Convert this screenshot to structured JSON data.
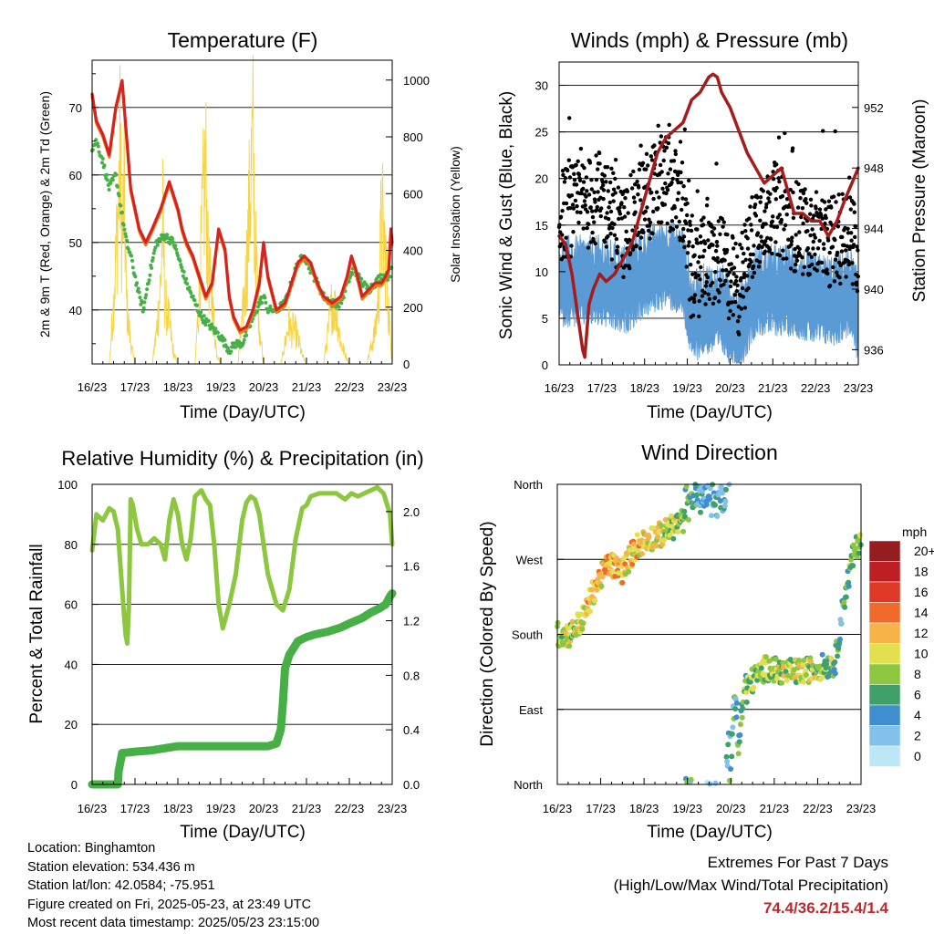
{
  "colors": {
    "temp2m": "#d42420",
    "temp9m": "#f07a18",
    "dew": "#46b046",
    "solar": "#f5d445",
    "gust": "#000000",
    "wind": "#5b9bd5",
    "pressure": "#a61c1c",
    "rh": "#8dc63f",
    "rain": "#46b046"
  },
  "x_ticks": [
    "16/23",
    "17/23",
    "18/23",
    "19/23",
    "20/23",
    "21/23",
    "22/23",
    "23/23"
  ],
  "xlabel": "Time (Day/UTC)",
  "panels": {
    "temp": {
      "title": "Temperature (F)",
      "ylabel_left": "2m & 9m T (Red, Orange) & 2m Td (Green)",
      "ylabel_right": "Solar Insolation (Yellow)",
      "left_ticks": [
        "40",
        "50",
        "60",
        "70"
      ],
      "right_ticks": [
        "0",
        "200",
        "400",
        "600",
        "800",
        "1000"
      ]
    },
    "wind": {
      "title": "Winds (mph) & Pressure (mb)",
      "ylabel_left": "Sonic Wind & Gust (Blue, Black)",
      "ylabel_right": "Station Pressure (Maroon)",
      "left_ticks": [
        "0",
        "5",
        "10",
        "15",
        "20",
        "25",
        "30"
      ],
      "right_ticks": [
        "936",
        "940",
        "944",
        "948",
        "952"
      ]
    },
    "rh": {
      "title": "Relative Humidity (%) & Precipitation (in)",
      "ylabel_left": "Percent & Total Rainfall",
      "left_ticks": [
        "0",
        "20",
        "40",
        "60",
        "80",
        "100"
      ],
      "right_ticks": [
        "0.0",
        "0.4",
        "0.8",
        "1.2",
        "1.6",
        "2.0"
      ]
    },
    "dir": {
      "title": "Wind Direction",
      "ylabel_left": "Direction (Colored By Speed)",
      "left_ticks": [
        "North",
        "East",
        "South",
        "West",
        "North"
      ],
      "legend_title": "mph",
      "legend_labels": [
        "0",
        "2",
        "4",
        "6",
        "8",
        "10",
        "12",
        "14",
        "16",
        "18",
        "20+"
      ],
      "legend_colors": [
        "#bde6f7",
        "#82c1ea",
        "#3f8fcf",
        "#3fa06a",
        "#8dc63f",
        "#e3e04f",
        "#f7b24a",
        "#ef6a2b",
        "#df3a27",
        "#bd1f25",
        "#951c1f"
      ]
    }
  },
  "info": {
    "location": "Location: Binghamton",
    "elevation": "Station elevation: 534.436 m",
    "latlon": "Station lat/lon: 42.0584; -75.951",
    "created": "Figure created on Fri, 2025-05-23, at 23:49 UTC",
    "recent": "Most recent data timestamp: 2025/05/23 23:15:00"
  },
  "extremes": {
    "line1": "Extremes For Past 7 Days",
    "line2": "(High/Low/Max Wind/Total Precipitation)",
    "values": "74.4/36.2/15.4/1.4"
  },
  "chart_data": [
    {
      "type": "line",
      "title": "Temperature (F)",
      "xlabel": "Time (Day/UTC)",
      "ylabel": "2m & 9m T (Red, Orange) & 2m Td (Green)",
      "y2label": "Solar Insolation (Yellow)",
      "xlim": [
        0,
        7
      ],
      "ylim": [
        32,
        77
      ],
      "y2lim": [
        0,
        1070
      ],
      "x_tick_labels": [
        "16/23",
        "17/23",
        "18/23",
        "19/23",
        "20/23",
        "21/23",
        "22/23",
        "23/23"
      ],
      "series": [
        {
          "name": "2m T",
          "axis": "left",
          "x": [
            0,
            0.1,
            0.25,
            0.4,
            0.55,
            0.7,
            0.8,
            0.9,
            1.0,
            1.1,
            1.25,
            1.4,
            1.6,
            1.8,
            2.0,
            2.1,
            2.2,
            2.35,
            2.5,
            2.65,
            2.8,
            2.95,
            3.1,
            3.2,
            3.3,
            3.45,
            3.6,
            3.75,
            3.9,
            4.0,
            4.1,
            4.3,
            4.5,
            4.65,
            4.8,
            4.95,
            5.1,
            5.25,
            5.4,
            5.6,
            5.8,
            5.95,
            6.05,
            6.15,
            6.3,
            6.45,
            6.6,
            6.75,
            6.85,
            6.92,
            6.97,
            7.0
          ],
          "y": [
            72,
            68,
            66,
            63,
            70,
            74,
            66,
            58,
            55,
            52,
            50,
            52,
            55,
            59,
            55,
            52,
            50,
            48,
            45,
            42,
            44,
            52,
            49,
            42,
            39,
            37,
            37.5,
            40,
            44,
            50,
            45,
            40,
            41,
            44,
            47,
            48,
            47,
            44,
            42,
            41,
            42,
            45,
            48,
            46,
            42,
            43,
            44,
            44,
            45,
            46,
            52,
            50
          ]
        },
        {
          "name": "2m Td",
          "axis": "left",
          "x": [
            0,
            0.1,
            0.25,
            0.4,
            0.55,
            0.7,
            0.8,
            0.9,
            1.0,
            1.1,
            1.2,
            1.3,
            1.5,
            1.7,
            1.9,
            2.0,
            2.2,
            2.4,
            2.55,
            2.7,
            2.85,
            3.0,
            3.2,
            3.35,
            3.5,
            3.7,
            3.9,
            4.0,
            4.1,
            4.3,
            4.5,
            4.65,
            4.8,
            4.95,
            5.1,
            5.25,
            5.4,
            5.6,
            5.8,
            5.95,
            6.1,
            6.3,
            6.45,
            6.6,
            6.75,
            6.9,
            7.0
          ],
          "y": [
            64,
            65,
            62,
            58,
            60,
            54,
            50,
            48,
            45,
            42,
            40,
            44,
            50,
            51,
            50,
            48,
            44,
            41,
            39,
            38,
            37,
            36,
            34,
            35,
            35,
            38,
            41,
            42,
            40,
            40,
            41,
            44,
            47,
            48,
            46,
            44,
            42,
            41,
            41,
            44,
            46,
            44,
            43,
            44,
            45,
            45,
            46
          ]
        },
        {
          "name": "Solar Insolation",
          "axis": "right",
          "x": [
            0,
            0.4,
            0.5,
            0.6,
            0.65,
            0.7,
            0.75,
            0.8,
            0.9,
            1.0,
            1.4,
            1.5,
            1.6,
            1.65,
            1.7,
            1.8,
            1.9,
            2.0,
            2.4,
            2.5,
            2.6,
            2.65,
            2.7,
            2.8,
            2.9,
            3.0,
            3.4,
            3.5,
            3.6,
            3.7,
            3.75,
            3.8,
            3.9,
            4.0,
            4.4,
            4.5,
            4.6,
            4.65,
            4.7,
            4.8,
            4.9,
            5.0,
            5.4,
            5.5,
            5.6,
            5.7,
            5.8,
            5.9,
            6.0,
            6.4,
            6.5,
            6.6,
            6.7,
            6.75,
            6.85,
            6.95,
            7.0
          ],
          "y": [
            0,
            0,
            300,
            700,
            1000,
            600,
            850,
            300,
            100,
            0,
            0,
            150,
            400,
            700,
            300,
            200,
            50,
            0,
            0,
            350,
            800,
            950,
            500,
            300,
            60,
            0,
            0,
            200,
            450,
            900,
            1060,
            600,
            200,
            0,
            0,
            100,
            200,
            150,
            180,
            120,
            40,
            0,
            0,
            150,
            300,
            250,
            100,
            50,
            0,
            0,
            80,
            150,
            380,
            720,
            500,
            150,
            0
          ]
        }
      ]
    },
    {
      "type": "line",
      "title": "Winds (mph) & Pressure (mb)",
      "xlabel": "Time (Day/UTC)",
      "ylabel": "Sonic Wind & Gust (Blue, Black)",
      "y2label": "Station Pressure (Maroon)",
      "xlim": [
        0,
        7
      ],
      "ylim": [
        0,
        32.5
      ],
      "y2lim": [
        935,
        955
      ],
      "x_tick_labels": [
        "16/23",
        "17/23",
        "18/23",
        "19/23",
        "20/23",
        "21/23",
        "22/23",
        "23/23"
      ],
      "series": [
        {
          "name": "Station Pressure",
          "axis": "right",
          "x": [
            0,
            0.15,
            0.3,
            0.45,
            0.55,
            0.6,
            0.7,
            0.8,
            0.95,
            1.1,
            1.3,
            1.5,
            1.7,
            1.9,
            2.1,
            2.3,
            2.5,
            2.7,
            2.9,
            3.1,
            3.3,
            3.5,
            3.6,
            3.7,
            3.8,
            4.0,
            4.2,
            4.4,
            4.6,
            4.8,
            5.0,
            5.2,
            5.4,
            5.5,
            5.7,
            5.9,
            6.1,
            6.3,
            6.5,
            6.7,
            6.85,
            7.0
          ],
          "y": [
            943.5,
            943,
            941,
            938,
            936,
            935.5,
            939,
            940,
            941,
            940.5,
            941,
            942,
            943,
            945,
            947,
            949,
            950,
            950.5,
            951,
            952.5,
            953,
            954,
            954.2,
            954,
            953,
            952,
            950.5,
            949,
            948,
            947,
            947.5,
            948,
            946,
            945,
            945,
            944.5,
            944.5,
            943.5,
            944.5,
            946,
            947,
            948
          ]
        }
      ]
    },
    {
      "type": "line",
      "title": "Relative Humidity (%) & Precipitation (in)",
      "xlabel": "Time (Day/UTC)",
      "ylabel": "Percent & Total Rainfall",
      "xlim": [
        0,
        7
      ],
      "ylim": [
        0,
        100
      ],
      "y2lim": [
        0,
        2.2
      ],
      "x_tick_labels": [
        "16/23",
        "17/23",
        "18/23",
        "19/23",
        "20/23",
        "21/23",
        "22/23",
        "23/23"
      ],
      "series": [
        {
          "name": "Relative Humidity",
          "axis": "left",
          "x": [
            0,
            0.1,
            0.25,
            0.4,
            0.5,
            0.6,
            0.7,
            0.78,
            0.82,
            0.86,
            0.9,
            0.95,
            1.05,
            1.15,
            1.3,
            1.45,
            1.6,
            1.7,
            1.8,
            1.9,
            2.0,
            2.1,
            2.2,
            2.3,
            2.4,
            2.55,
            2.65,
            2.75,
            2.85,
            2.95,
            3.05,
            3.2,
            3.35,
            3.5,
            3.6,
            3.7,
            3.8,
            3.9,
            4.0,
            4.1,
            4.3,
            4.45,
            4.6,
            4.75,
            4.9,
            5.0,
            5.1,
            5.3,
            5.5,
            5.7,
            5.9,
            6.05,
            6.2,
            6.35,
            6.5,
            6.65,
            6.8,
            6.95,
            7.0
          ],
          "y": [
            78,
            90,
            88,
            92,
            91,
            85,
            65,
            50,
            47,
            60,
            95,
            93,
            85,
            80,
            80,
            82,
            80,
            75,
            88,
            95,
            90,
            80,
            75,
            82,
            96,
            98,
            95,
            93,
            80,
            60,
            52,
            60,
            70,
            88,
            94,
            96,
            95,
            90,
            80,
            70,
            60,
            58,
            65,
            82,
            92,
            93,
            96,
            97,
            97,
            97,
            95,
            97,
            96,
            97,
            98,
            99,
            97,
            90,
            80
          ]
        },
        {
          "name": "Total Rainfall",
          "axis": "right",
          "x": [
            0,
            0.6,
            0.62,
            0.65,
            0.7,
            1.0,
            1.4,
            1.8,
            2.0,
            2.5,
            3.0,
            3.5,
            3.9,
            4.1,
            4.2,
            4.3,
            4.4,
            4.45,
            4.5,
            4.6,
            4.7,
            4.8,
            5.0,
            5.2,
            5.5,
            5.8,
            6.0,
            6.3,
            6.5,
            6.7,
            6.85,
            6.95,
            7.0
          ],
          "y": [
            0,
            0,
            0.1,
            0.15,
            0.23,
            0.24,
            0.25,
            0.27,
            0.28,
            0.28,
            0.28,
            0.28,
            0.28,
            0.28,
            0.29,
            0.3,
            0.4,
            0.6,
            0.85,
            0.95,
            1.0,
            1.05,
            1.08,
            1.1,
            1.12,
            1.15,
            1.18,
            1.22,
            1.26,
            1.29,
            1.32,
            1.38,
            1.4
          ]
        }
      ]
    },
    {
      "type": "scatter",
      "title": "Wind Direction",
      "xlabel": "Time (Day/UTC)",
      "ylabel": "Direction (Colored By Speed)",
      "xlim": [
        0,
        7
      ],
      "ylim": [
        0,
        360
      ],
      "y_tick_labels": [
        "North",
        "East",
        "South",
        "West",
        "North"
      ],
      "x_tick_labels": [
        "16/23",
        "17/23",
        "18/23",
        "19/23",
        "20/23",
        "21/23",
        "22/23",
        "23/23"
      ],
      "legend": {
        "title": "mph",
        "labels": [
          "0",
          "2",
          "4",
          "6",
          "8",
          "10",
          "12",
          "14",
          "16",
          "18",
          "20+"
        ]
      },
      "series": [
        {
          "name": "Direction",
          "x": [
            0,
            0.3,
            0.6,
            0.9,
            1.2,
            1.5,
            1.8,
            2.1,
            2.4,
            2.7,
            3.0,
            3.5,
            3.9,
            4.1,
            4.4,
            4.8,
            5.2,
            5.6,
            6.0,
            6.4,
            6.6,
            6.8,
            7.0
          ],
          "y": [
            180,
            180,
            200,
            240,
            265,
            255,
            285,
            295,
            300,
            310,
            320,
            330,
            335,
            5,
            120,
            140,
            135,
            135,
            140,
            145,
            220,
            270,
            300
          ],
          "speed": [
            8,
            9,
            10,
            11,
            12,
            12,
            11,
            10,
            10,
            9,
            6,
            3,
            4,
            5,
            8,
            8,
            9,
            10,
            8,
            6,
            5,
            7,
            8
          ]
        }
      ]
    }
  ]
}
